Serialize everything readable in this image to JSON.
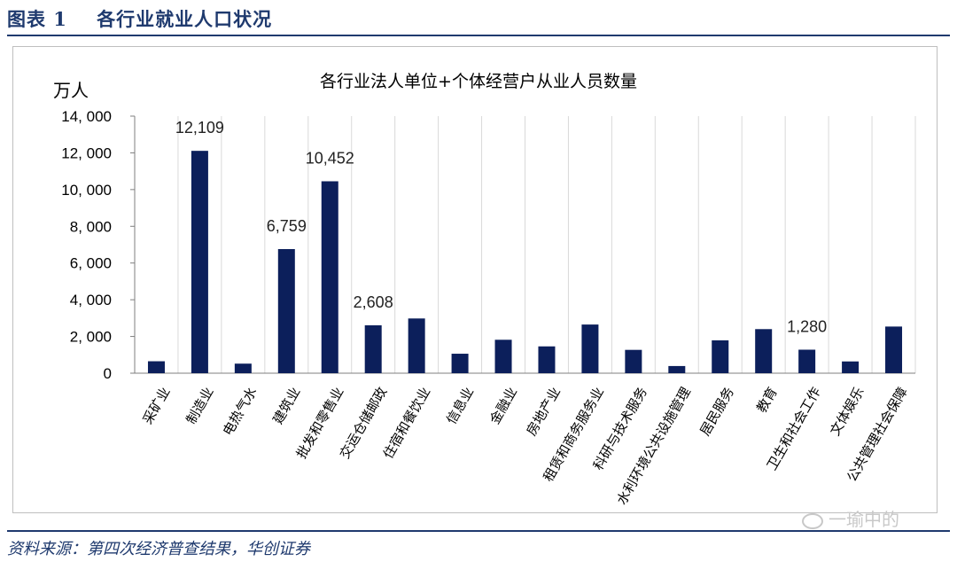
{
  "figure": {
    "label": "图表 1",
    "title": "各行业就业人口状况",
    "source": "资料来源：第四次经济普查结果，华创证券",
    "watermark": "一瑜中的"
  },
  "colors": {
    "bar": "#0c1f5b",
    "header": "#1f3a6e",
    "grid": "#d9d9d9"
  },
  "chart_data": {
    "type": "bar",
    "title": "各行业法人单位+个体经营户从业人员数量",
    "ylabel": "万人",
    "xlabel": "",
    "ylim": [
      0,
      14000
    ],
    "yticks": [
      0,
      2000,
      4000,
      6000,
      8000,
      10000,
      12000,
      14000
    ],
    "ytick_labels": [
      "0",
      "2, 000",
      "4, 000",
      "6, 000",
      "8, 000",
      "10, 000",
      "12, 000",
      "14, 000"
    ],
    "grid": "vertical",
    "categories": [
      "采矿业",
      "制造业",
      "电热气水",
      "建筑业",
      "批发和零售业",
      "交运仓储邮政",
      "住宿和餐饮业",
      "信息业",
      "金融业",
      "房地产业",
      "租赁和商务服务业",
      "科研与技术服务",
      "水利环境公共设施管理",
      "居民服务",
      "教育",
      "卫生和社会工作",
      "文体娱乐",
      "公共管理社会保障"
    ],
    "values": [
      650,
      12109,
      520,
      6759,
      10452,
      2608,
      2980,
      1060,
      1820,
      1460,
      2650,
      1270,
      390,
      1790,
      2400,
      1280,
      640,
      2540
    ],
    "data_labels": [
      {
        "index": 1,
        "text": "12,109"
      },
      {
        "index": 3,
        "text": "6,759"
      },
      {
        "index": 4,
        "text": "10,452"
      },
      {
        "index": 5,
        "text": "2,608"
      },
      {
        "index": 15,
        "text": "1,280"
      }
    ]
  }
}
